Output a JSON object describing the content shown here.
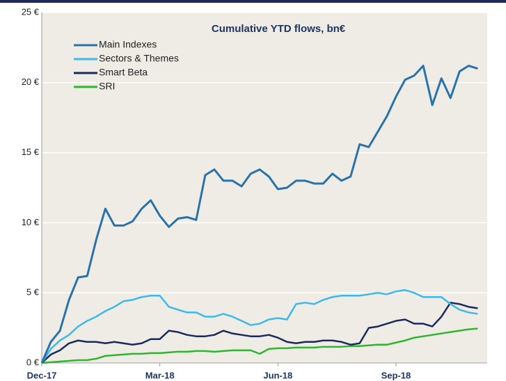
{
  "chart_data": {
    "type": "line",
    "title": "Cumulative YTD flows, bn€",
    "categories": [
      "Dec-17",
      null,
      null,
      null,
      null,
      null,
      null,
      null,
      null,
      null,
      null,
      null,
      null,
      "Mar-18",
      null,
      null,
      null,
      null,
      null,
      null,
      null,
      null,
      null,
      null,
      null,
      null,
      "Jun-18",
      null,
      null,
      null,
      null,
      null,
      null,
      null,
      null,
      null,
      null,
      null,
      null,
      "Sep-18",
      null,
      null,
      null,
      null,
      null,
      null,
      null,
      null,
      null
    ],
    "series": [
      {
        "name": "Main Indexes",
        "color": "#2a72a8",
        "values": [
          0,
          1.5,
          2.3,
          4.5,
          6.1,
          6.2,
          8.8,
          11.0,
          9.8,
          9.8,
          10.1,
          11.0,
          11.6,
          10.5,
          9.7,
          10.3,
          10.4,
          10.2,
          13.4,
          13.8,
          13.0,
          13.0,
          12.6,
          13.5,
          13.8,
          13.3,
          12.4,
          12.5,
          13.0,
          13.0,
          12.8,
          12.8,
          13.5,
          13.0,
          13.3,
          15.6,
          15.4,
          16.5,
          17.6,
          19.0,
          20.2,
          20.5,
          21.2,
          18.4,
          20.3,
          18.9,
          20.8,
          21.2,
          21.0
        ]
      },
      {
        "name": "Sectors & Themes",
        "color": "#3cb9ea",
        "values": [
          0,
          1.0,
          1.6,
          2.0,
          2.6,
          3.0,
          3.3,
          3.7,
          4.0,
          4.4,
          4.5,
          4.7,
          4.8,
          4.8,
          4.0,
          3.8,
          3.6,
          3.6,
          3.3,
          3.3,
          3.5,
          3.3,
          3.0,
          2.7,
          2.8,
          3.1,
          3.2,
          3.1,
          4.2,
          4.3,
          4.2,
          4.5,
          4.7,
          4.8,
          4.8,
          4.8,
          4.9,
          5.0,
          4.9,
          5.1,
          5.2,
          5.0,
          4.7,
          4.7,
          4.7,
          4.2,
          3.8,
          3.6,
          3.5
        ]
      },
      {
        "name": "Smart Beta",
        "color": "#1b2a5c",
        "values": [
          0,
          0.6,
          0.9,
          1.4,
          1.6,
          1.5,
          1.5,
          1.4,
          1.5,
          1.4,
          1.3,
          1.4,
          1.7,
          1.7,
          2.3,
          2.2,
          2.0,
          1.9,
          1.9,
          2.0,
          2.3,
          2.1,
          2.0,
          1.9,
          1.9,
          2.0,
          1.8,
          1.5,
          1.4,
          1.5,
          1.5,
          1.6,
          1.6,
          1.5,
          1.3,
          1.4,
          2.5,
          2.6,
          2.8,
          3.0,
          3.1,
          2.8,
          2.8,
          2.6,
          3.3,
          4.3,
          4.2,
          4.0,
          3.9
        ]
      },
      {
        "name": "SRI",
        "color": "#2fb52f",
        "values": [
          0,
          0.05,
          0.1,
          0.15,
          0.2,
          0.2,
          0.3,
          0.5,
          0.55,
          0.6,
          0.65,
          0.65,
          0.7,
          0.7,
          0.75,
          0.8,
          0.8,
          0.85,
          0.85,
          0.8,
          0.85,
          0.9,
          0.9,
          0.9,
          0.65,
          1.0,
          1.05,
          1.05,
          1.1,
          1.1,
          1.1,
          1.15,
          1.15,
          1.15,
          1.2,
          1.2,
          1.25,
          1.3,
          1.3,
          1.45,
          1.6,
          1.8,
          1.9,
          2.0,
          2.1,
          2.2,
          2.3,
          2.4,
          2.45
        ]
      }
    ],
    "ylim": [
      0,
      25
    ],
    "yticks": [
      {
        "value": 0,
        "label": "0 €"
      },
      {
        "value": 5,
        "label": "5 €"
      },
      {
        "value": 10,
        "label": "10 €"
      },
      {
        "value": 15,
        "label": "15 €"
      },
      {
        "value": 20,
        "label": "20 €"
      },
      {
        "value": 25,
        "label": "25 €"
      }
    ],
    "grid": true,
    "legend": "upper left"
  }
}
